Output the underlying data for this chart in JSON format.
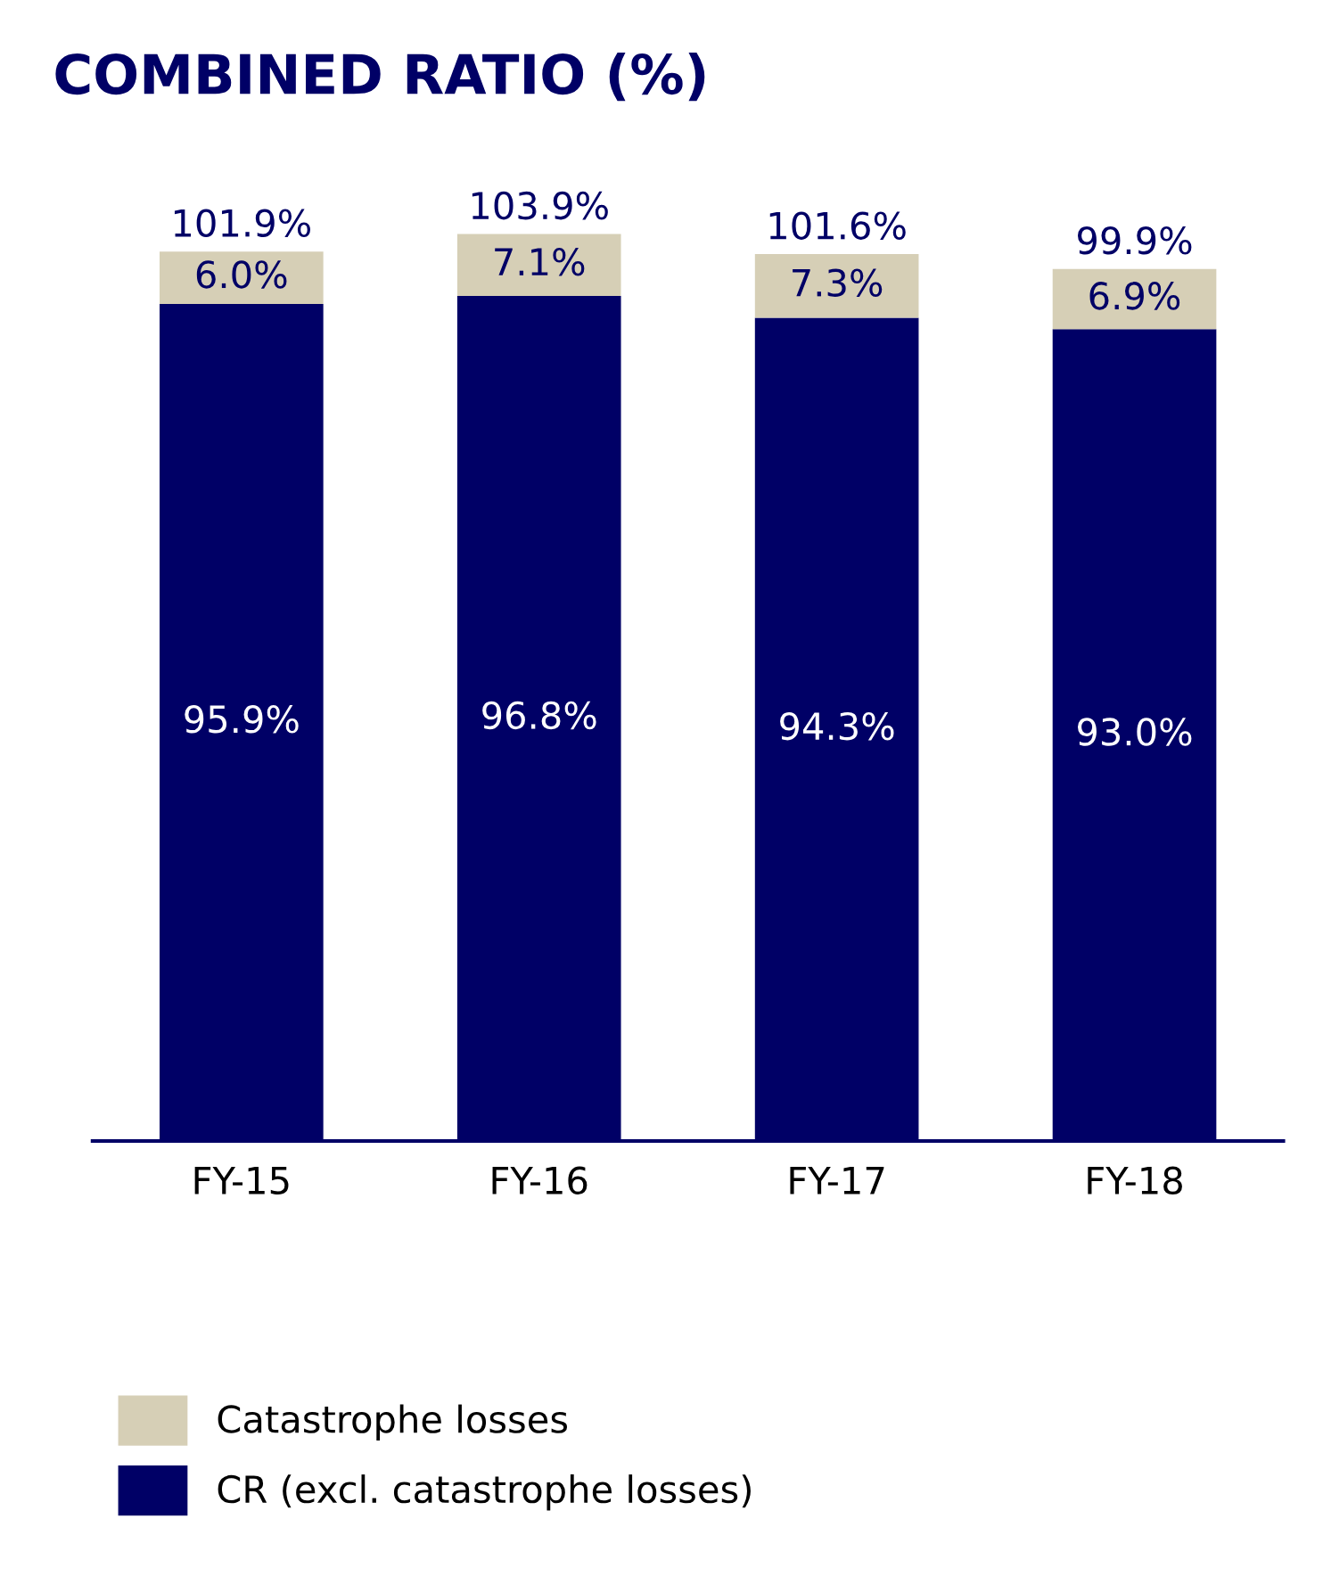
{
  "chart_data": {
    "type": "bar",
    "stacked": true,
    "title": "COMBINED RATIO (%)",
    "categories": [
      "FY-15",
      "FY-16",
      "FY-17",
      "FY-18"
    ],
    "series": [
      {
        "name": "CR (excl. catastrophe losses)",
        "color": "#000066",
        "values": [
          95.9,
          96.8,
          94.3,
          93.0
        ],
        "value_labels": [
          "95.9%",
          "96.8%",
          "94.3%",
          "93.0%"
        ]
      },
      {
        "name": "Catastrophe losses",
        "color": "#d6cfb6",
        "values": [
          6.0,
          7.1,
          7.3,
          6.9
        ],
        "value_labels": [
          "6.0%",
          "7.1%",
          "7.3%",
          "6.9%"
        ]
      }
    ],
    "totals": [
      "101.9%",
      "103.9%",
      "101.6%",
      "99.9%"
    ],
    "tick_labels": "x",
    "grid": false,
    "legend": "bottom"
  }
}
